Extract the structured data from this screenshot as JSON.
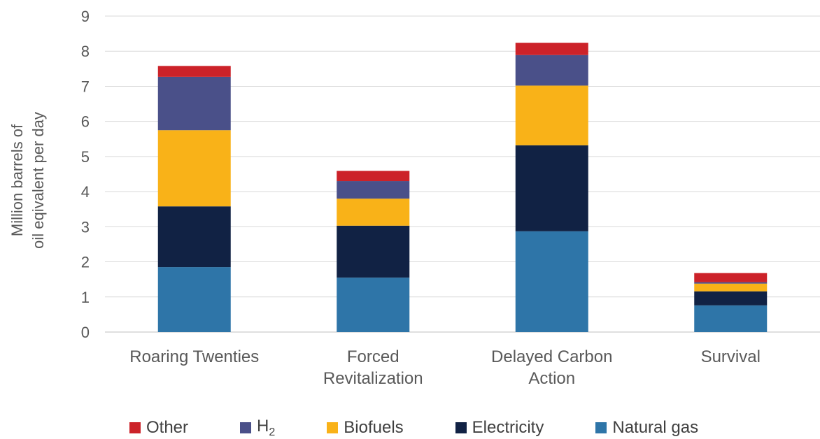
{
  "chart_data": {
    "type": "bar",
    "stacked": true,
    "categories": [
      [
        "Roaring Twenties"
      ],
      [
        "Forced",
        "Revitalization"
      ],
      [
        "Delayed Carbon",
        "Action"
      ],
      [
        "Survival"
      ]
    ],
    "ylabel": [
      "Million barrels of",
      "oil eqivalent per day"
    ],
    "ylim": [
      0,
      9
    ],
    "yticks": [
      0,
      1,
      2,
      3,
      4,
      5,
      6,
      7,
      8,
      9
    ],
    "grid": true,
    "legend_position": "bottom",
    "series": [
      {
        "name": "Natural gas",
        "color": "#2E75A8",
        "values": [
          1.85,
          1.55,
          2.87,
          0.76
        ]
      },
      {
        "name": "Electricity",
        "color": "#112244",
        "values": [
          1.73,
          1.48,
          2.45,
          0.4
        ]
      },
      {
        "name": "Biofuels",
        "color": "#F9B218",
        "values": [
          2.17,
          0.77,
          1.7,
          0.22
        ]
      },
      {
        "name": "H",
        "name_subscript": "2",
        "color": "#4A5089",
        "values": [
          1.52,
          0.5,
          0.87,
          0.04
        ]
      },
      {
        "name": "Other",
        "color": "#CC2229",
        "values": [
          0.31,
          0.29,
          0.35,
          0.26
        ]
      }
    ],
    "legend_order": [
      "Other",
      "H",
      "Biofuels",
      "Electricity",
      "Natural gas"
    ]
  }
}
